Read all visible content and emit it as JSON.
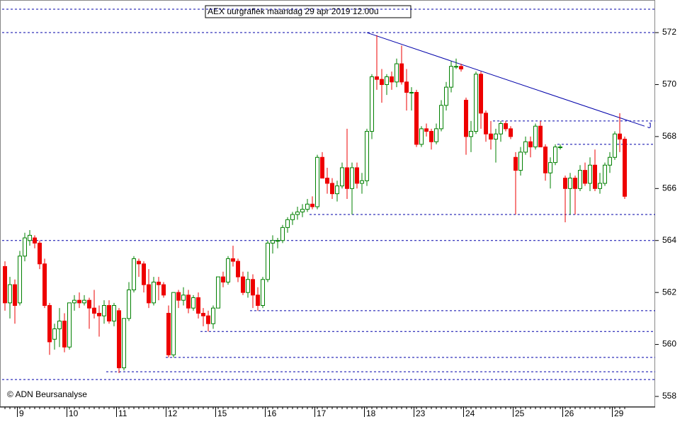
{
  "chart_data": {
    "type": "candlestick",
    "title": "AEX uurgrafiek maandag 29 apr 2019 12.00u",
    "footer": "© ADN Beursanalyse",
    "annotation": "J",
    "up_color": "#008000",
    "down_color": "#ee0000",
    "line_color": "#0000aa",
    "categories": [
      null,
      null,
      null,
      "9",
      null,
      null,
      null,
      null,
      null,
      null,
      null,
      null,
      null,
      "10",
      null,
      null,
      null,
      null,
      null,
      null,
      null,
      null,
      null,
      "11",
      null,
      null,
      null,
      null,
      null,
      null,
      null,
      null,
      null,
      "12",
      null,
      null,
      null,
      null,
      null,
      null,
      null,
      null,
      null,
      "15",
      null,
      null,
      null,
      null,
      null,
      null,
      null,
      null,
      null,
      "16",
      null,
      null,
      null,
      null,
      null,
      null,
      null,
      null,
      null,
      "17",
      null,
      null,
      null,
      null,
      null,
      null,
      null,
      null,
      null,
      "18",
      null,
      null,
      null,
      null,
      null,
      null,
      null,
      null,
      null,
      "23",
      null,
      null,
      null,
      null,
      null,
      null,
      null,
      null,
      null,
      "24",
      null,
      null,
      null,
      null,
      null,
      null,
      null,
      null,
      null,
      "25",
      null,
      null,
      null,
      null,
      null,
      null,
      null,
      null,
      null,
      "26",
      null,
      null,
      null,
      null,
      null,
      null,
      null,
      null,
      null,
      "29",
      null,
      null
    ],
    "open": [
      563.0,
      561.6,
      562.3,
      561.6,
      563.4,
      564.0,
      564.1,
      563.9,
      563.1,
      561.5,
      560.2,
      560.6,
      560.9,
      559.9,
      561.6,
      561.7,
      561.6,
      561.7,
      561.4,
      561.2,
      561.1,
      561.5,
      560.9,
      561.3,
      559.1,
      561.0,
      562.1,
      563.2,
      563.1,
      562.3,
      561.6,
      562.4,
      562.3,
      561.2,
      559.6,
      562.0,
      561.7,
      561.9,
      561.4,
      561.8,
      561.2,
      561.1,
      560.8,
      561.4,
      562.6,
      562.4,
      563.3,
      563.2,
      562.6,
      562.0,
      562.5,
      561.9,
      561.5,
      562.5,
      563.9,
      564.0,
      564.0,
      564.5,
      564.8,
      565.0,
      565.1,
      565.2,
      565.4,
      565.3,
      567.2,
      566.4,
      566.2,
      565.8,
      566.1,
      566.8,
      566.0,
      566.8,
      566.2,
      566.3,
      568.2,
      570.3,
      570.2,
      570.0,
      570.3,
      570.1,
      570.8,
      570.1,
      569.7,
      569.7,
      567.7,
      568.3,
      568.2,
      567.8,
      568.3,
      569.2,
      569.9,
      570.7,
      570.7,
      569.4,
      568.0,
      568.2,
      570.4,
      568.9,
      568.1,
      567.9,
      568.1,
      568.5,
      568.3,
      567.2,
      566.7,
      567.4,
      567.8,
      567.6,
      568.4,
      567.6,
      566.6,
      567.0,
      567.6,
      566.4,
      566.0,
      566.4,
      566.0,
      566.7,
      566.2,
      566.9,
      566.0,
      566.2,
      566.9,
      567.2,
      568.1,
      567.9
    ],
    "high": [
      563.2,
      562.6,
      562.5,
      563.6,
      564.3,
      564.4,
      564.2,
      564.0,
      563.3,
      561.6,
      560.8,
      561.4,
      561.2,
      561.6,
      561.9,
      562.0,
      561.9,
      561.8,
      562.1,
      561.5,
      561.7,
      561.7,
      561.6,
      561.4,
      561.0,
      562.4,
      563.4,
      563.3,
      563.2,
      562.9,
      562.6,
      562.6,
      562.4,
      561.5,
      562.0,
      562.1,
      562.2,
      562.1,
      561.9,
      562.0,
      561.4,
      561.3,
      561.5,
      562.6,
      562.8,
      563.4,
      563.8,
      563.3,
      562.8,
      562.8,
      562.7,
      562.2,
      562.6,
      564.0,
      564.2,
      564.1,
      564.6,
      564.9,
      565.1,
      565.3,
      565.4,
      565.6,
      565.7,
      567.3,
      567.4,
      566.8,
      566.4,
      566.3,
      567.0,
      568.3,
      567.0,
      567.0,
      566.6,
      568.3,
      570.4,
      571.9,
      570.6,
      570.4,
      570.5,
      571.0,
      571.5,
      570.6,
      569.9,
      569.8,
      568.4,
      568.5,
      568.3,
      568.5,
      569.4,
      570.1,
      570.9,
      571.0,
      570.8,
      569.5,
      568.6,
      570.5,
      570.5,
      569.0,
      568.6,
      568.3,
      568.6,
      568.6,
      568.4,
      567.4,
      567.6,
      568.0,
      568.0,
      568.5,
      568.6,
      567.7,
      567.2,
      567.7,
      567.7,
      566.5,
      566.6,
      566.5,
      566.9,
      567.0,
      567.2,
      567.5,
      566.6,
      567.0,
      567.4,
      568.2,
      568.9,
      568.0
    ],
    "low": [
      561.3,
      561.0,
      560.8,
      561.5,
      563.2,
      563.8,
      563.7,
      562.9,
      561.4,
      559.6,
      559.8,
      559.9,
      559.7,
      559.8,
      561.3,
      561.4,
      561.5,
      560.6,
      561.0,
      560.3,
      560.8,
      560.8,
      560.7,
      558.9,
      559.0,
      560.9,
      562.0,
      562.6,
      562.0,
      561.4,
      561.5,
      561.7,
      561.8,
      559.5,
      559.5,
      561.4,
      561.5,
      561.2,
      561.3,
      561.0,
      560.7,
      560.5,
      560.6,
      561.4,
      562.2,
      562.3,
      563.0,
      562.4,
      561.9,
      561.8,
      561.4,
      561.3,
      561.4,
      562.4,
      563.5,
      563.7,
      563.9,
      564.3,
      564.6,
      564.8,
      564.9,
      565.1,
      565.2,
      565.2,
      566.4,
      565.8,
      565.6,
      565.5,
      566.0,
      565.6,
      565.0,
      566.0,
      565.8,
      566.1,
      567.9,
      569.8,
      569.3,
      569.6,
      569.8,
      569.9,
      570.0,
      569.0,
      569.0,
      567.6,
      567.6,
      568.0,
      567.5,
      567.7,
      568.2,
      569.0,
      569.7,
      570.6,
      570.5,
      567.3,
      567.4,
      568.1,
      568.3,
      567.8,
      567.5,
      567.0,
      567.8,
      568.2,
      567.9,
      565.0,
      566.5,
      567.3,
      567.2,
      567.5,
      567.6,
      566.3,
      566.0,
      566.9,
      567.5,
      564.7,
      565.0,
      565.0,
      565.9,
      566.1,
      565.9,
      565.9,
      565.8,
      566.1,
      566.6,
      567.1,
      567.4,
      565.6
    ],
    "close": [
      561.6,
      562.3,
      561.5,
      563.4,
      564.1,
      564.2,
      563.9,
      563.1,
      561.5,
      560.1,
      560.6,
      560.9,
      559.9,
      561.6,
      561.7,
      561.6,
      561.7,
      561.4,
      561.2,
      561.1,
      561.5,
      560.9,
      561.5,
      559.1,
      561.0,
      562.1,
      563.3,
      563.1,
      562.3,
      561.6,
      562.4,
      562.3,
      561.9,
      559.6,
      562.0,
      561.7,
      561.9,
      561.4,
      561.8,
      561.2,
      561.1,
      560.8,
      561.4,
      562.6,
      562.4,
      563.3,
      563.2,
      562.6,
      562.0,
      562.5,
      561.9,
      561.5,
      562.5,
      563.9,
      564.0,
      564.0,
      564.5,
      564.8,
      565.0,
      565.1,
      565.2,
      565.4,
      565.3,
      567.2,
      566.4,
      566.2,
      565.8,
      566.1,
      566.8,
      566.0,
      566.8,
      566.2,
      566.3,
      568.2,
      570.3,
      570.2,
      570.0,
      570.3,
      570.1,
      570.8,
      570.1,
      569.7,
      569.7,
      567.7,
      568.3,
      568.2,
      567.8,
      568.3,
      569.2,
      569.9,
      570.7,
      570.7,
      570.6,
      568.0,
      568.2,
      570.4,
      568.9,
      568.1,
      567.9,
      568.1,
      568.5,
      568.3,
      568.0,
      566.7,
      567.4,
      567.8,
      567.6,
      568.4,
      567.6,
      566.6,
      567.0,
      567.6,
      567.6,
      566.0,
      566.4,
      566.0,
      566.7,
      566.2,
      566.9,
      566.0,
      566.2,
      566.9,
      567.2,
      568.1,
      567.9,
      565.7
    ],
    "hlines": [
      {
        "value": 572.9,
        "from": 0
      },
      {
        "value": 572,
        "from": 0
      },
      {
        "value": 568.6,
        "from": 99
      },
      {
        "value": 567.7,
        "from": 112
      },
      {
        "value": 565.0,
        "from": 62
      },
      {
        "value": 564,
        "from": 0
      },
      {
        "value": 561.3,
        "from": 50
      },
      {
        "value": 560.5,
        "from": 40
      },
      {
        "value": 559.5,
        "from": 33
      },
      {
        "value": 558.95,
        "from": 21
      },
      {
        "value": 558.65,
        "from": 0
      }
    ],
    "trendline": {
      "from": 73,
      "from_value": 572.0,
      "to": 129,
      "to_value": 568.4
    },
    "ylim": [
      557.7,
      573.2
    ],
    "yticks": [
      558,
      560,
      562,
      564,
      566,
      568,
      570,
      572
    ]
  }
}
